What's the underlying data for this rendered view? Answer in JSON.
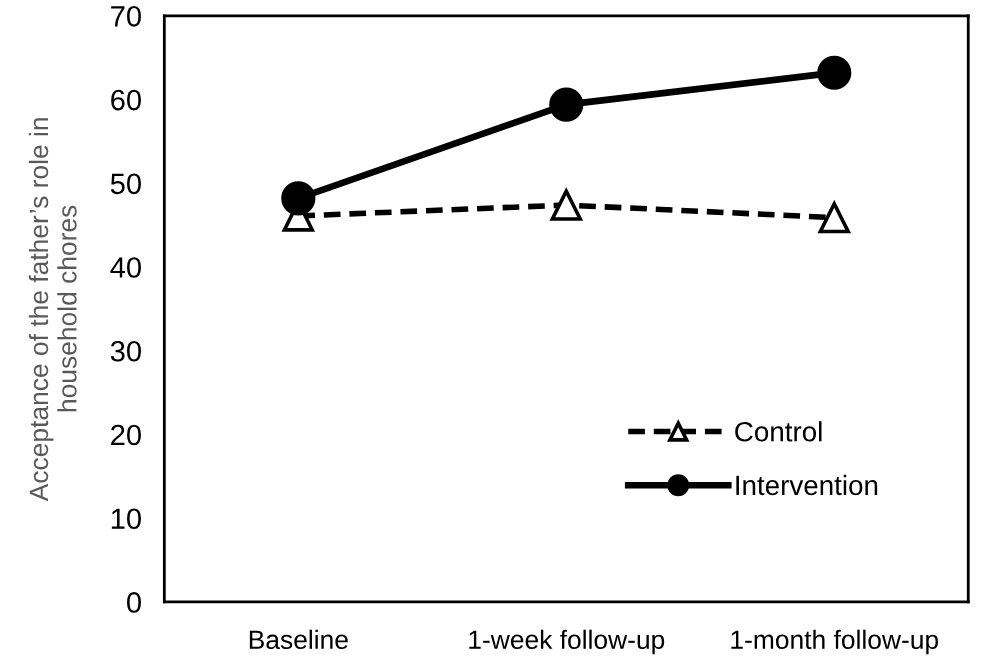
{
  "chart_data": {
    "type": "line",
    "categories": [
      "Baseline",
      "1-week follow-up",
      "1-month follow-up"
    ],
    "ylabel": "Acceptance of the father’s role in\nhousehold chores",
    "ylim": [
      0,
      70
    ],
    "yticks": [
      0,
      10,
      20,
      30,
      40,
      50,
      60,
      70
    ],
    "grid": false,
    "legend": "bottom right",
    "series": [
      {
        "name": "Control",
        "color": "#000000",
        "values": [
          46.1,
          47.4,
          45.9
        ],
        "marker": "triangle",
        "line_style": "dashed"
      },
      {
        "name": "Intervention",
        "color": "#000000",
        "values": [
          48.2,
          59.4,
          63.2
        ],
        "marker": "circle",
        "line_style": "solid"
      }
    ]
  }
}
